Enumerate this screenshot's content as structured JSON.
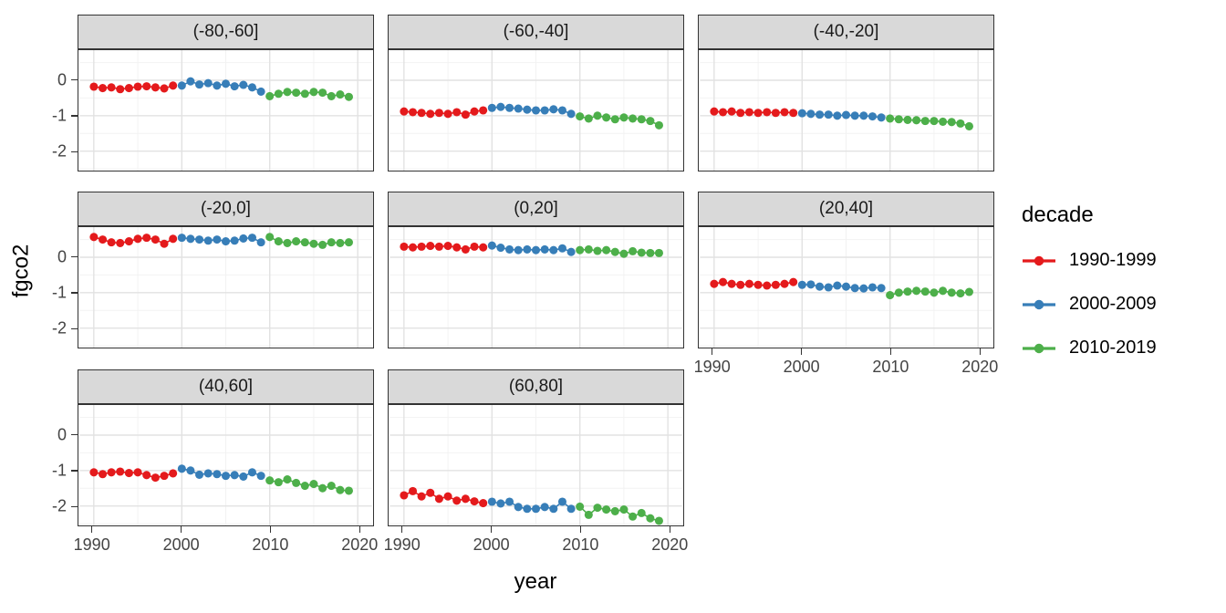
{
  "figure": {
    "x_axis_title": "year",
    "y_axis_title": "fgco2",
    "background_color": "#ffffff",
    "strip_fill": "#d9d9d9",
    "border_color": "#333333",
    "grid_major_color": "#e2e2e2",
    "grid_minor_color": "#f2f2f2",
    "tick_text_color": "#444444"
  },
  "legend": {
    "title": "decade",
    "items": [
      {
        "label": "1990-1999",
        "color": "#e41a1c",
        "start_year": 1990
      },
      {
        "label": "2000-2009",
        "color": "#377eb8",
        "start_year": 2000
      },
      {
        "label": "2010-2019",
        "color": "#4daf4a",
        "start_year": 2010
      }
    ]
  },
  "chart_data": {
    "type": "scatter",
    "title": "",
    "xlabel": "year",
    "ylabel": "fgco2",
    "facet_variable": "latitude band",
    "legend_title": "decade",
    "legend_position": "right",
    "grid": "major+minor",
    "x_ticks": [
      1990,
      2000,
      2010,
      2020
    ],
    "y_ticks": [
      0,
      -1,
      -2
    ],
    "x_minor_ticks": [
      1995,
      2005,
      2015
    ],
    "y_minor_ticks": [
      0.5,
      -0.5,
      -1.5,
      -2.5
    ],
    "x_range": [
      1988.4,
      2021.6
    ],
    "y_range": [
      -2.55,
      0.85
    ],
    "facets": [
      {
        "label": "(-80,-60]",
        "series": {
          "1990-1999": [
            -0.18,
            -0.22,
            -0.2,
            -0.25,
            -0.22,
            -0.18,
            -0.17,
            -0.2,
            -0.23,
            -0.15
          ],
          "2000-2009": [
            -0.15,
            -0.03,
            -0.12,
            -0.08,
            -0.15,
            -0.1,
            -0.17,
            -0.13,
            -0.2,
            -0.32
          ],
          "2010-2019": [
            -0.45,
            -0.38,
            -0.33,
            -0.35,
            -0.38,
            -0.33,
            -0.35,
            -0.45,
            -0.4,
            -0.47
          ]
        }
      },
      {
        "label": "(-60,-40]",
        "series": {
          "1990-1999": [
            -0.88,
            -0.9,
            -0.92,
            -0.95,
            -0.92,
            -0.95,
            -0.9,
            -0.97,
            -0.88,
            -0.85
          ],
          "2000-2009": [
            -0.78,
            -0.75,
            -0.78,
            -0.8,
            -0.83,
            -0.85,
            -0.85,
            -0.82,
            -0.85,
            -0.95
          ],
          "2010-2019": [
            -1.02,
            -1.08,
            -1.0,
            -1.05,
            -1.1,
            -1.05,
            -1.08,
            -1.1,
            -1.15,
            -1.27
          ]
        }
      },
      {
        "label": "(-40,-20]",
        "series": {
          "1990-1999": [
            -0.88,
            -0.9,
            -0.88,
            -0.92,
            -0.9,
            -0.92,
            -0.9,
            -0.92,
            -0.9,
            -0.92
          ],
          "2000-2009": [
            -0.93,
            -0.95,
            -0.97,
            -0.97,
            -1.0,
            -0.98,
            -1.0,
            -1.0,
            -1.02,
            -1.05
          ],
          "2010-2019": [
            -1.08,
            -1.1,
            -1.12,
            -1.13,
            -1.15,
            -1.15,
            -1.17,
            -1.18,
            -1.22,
            -1.3
          ]
        }
      },
      {
        "label": "(-20,0]",
        "series": {
          "1990-1999": [
            0.57,
            0.5,
            0.42,
            0.4,
            0.45,
            0.52,
            0.55,
            0.5,
            0.38,
            0.52
          ],
          "2000-2009": [
            0.55,
            0.52,
            0.5,
            0.47,
            0.5,
            0.45,
            0.47,
            0.53,
            0.55,
            0.42
          ],
          "2010-2019": [
            0.57,
            0.45,
            0.4,
            0.45,
            0.42,
            0.38,
            0.35,
            0.42,
            0.4,
            0.42
          ]
        }
      },
      {
        "label": "(0,20]",
        "series": {
          "1990-1999": [
            0.3,
            0.28,
            0.3,
            0.32,
            0.3,
            0.32,
            0.28,
            0.22,
            0.3,
            0.28
          ],
          "2000-2009": [
            0.33,
            0.27,
            0.22,
            0.2,
            0.22,
            0.2,
            0.22,
            0.2,
            0.25,
            0.15
          ],
          "2010-2019": [
            0.2,
            0.22,
            0.18,
            0.2,
            0.15,
            0.1,
            0.17,
            0.13,
            0.12,
            0.12
          ]
        }
      },
      {
        "label": "(20,40]",
        "series": {
          "1990-1999": [
            -0.75,
            -0.7,
            -0.75,
            -0.78,
            -0.75,
            -0.78,
            -0.8,
            -0.78,
            -0.75,
            -0.7
          ],
          "2000-2009": [
            -0.78,
            -0.77,
            -0.83,
            -0.85,
            -0.8,
            -0.83,
            -0.87,
            -0.88,
            -0.85,
            -0.87
          ],
          "2010-2019": [
            -1.07,
            -1.0,
            -0.97,
            -0.95,
            -0.97,
            -1.0,
            -0.95,
            -1.0,
            -1.02,
            -0.98
          ]
        }
      },
      {
        "label": "(40,60]",
        "series": {
          "1990-1999": [
            -1.05,
            -1.1,
            -1.05,
            -1.03,
            -1.07,
            -1.05,
            -1.13,
            -1.2,
            -1.15,
            -1.08
          ],
          "2000-2009": [
            -0.95,
            -1.0,
            -1.12,
            -1.08,
            -1.1,
            -1.15,
            -1.13,
            -1.17,
            -1.05,
            -1.15
          ],
          "2010-2019": [
            -1.28,
            -1.33,
            -1.25,
            -1.35,
            -1.43,
            -1.38,
            -1.5,
            -1.43,
            -1.55,
            -1.57
          ]
        }
      },
      {
        "label": "(60,80]",
        "series": {
          "1990-1999": [
            -1.7,
            -1.58,
            -1.73,
            -1.63,
            -1.8,
            -1.73,
            -1.85,
            -1.8,
            -1.87,
            -1.92
          ],
          "2000-2009": [
            -1.88,
            -1.93,
            -1.88,
            -2.03,
            -2.08,
            -2.08,
            -2.03,
            -2.08,
            -1.88,
            -2.08
          ],
          "2010-2019": [
            -2.02,
            -2.25,
            -2.05,
            -2.1,
            -2.15,
            -2.1,
            -2.3,
            -2.2,
            -2.35,
            -2.42
          ]
        }
      }
    ]
  }
}
